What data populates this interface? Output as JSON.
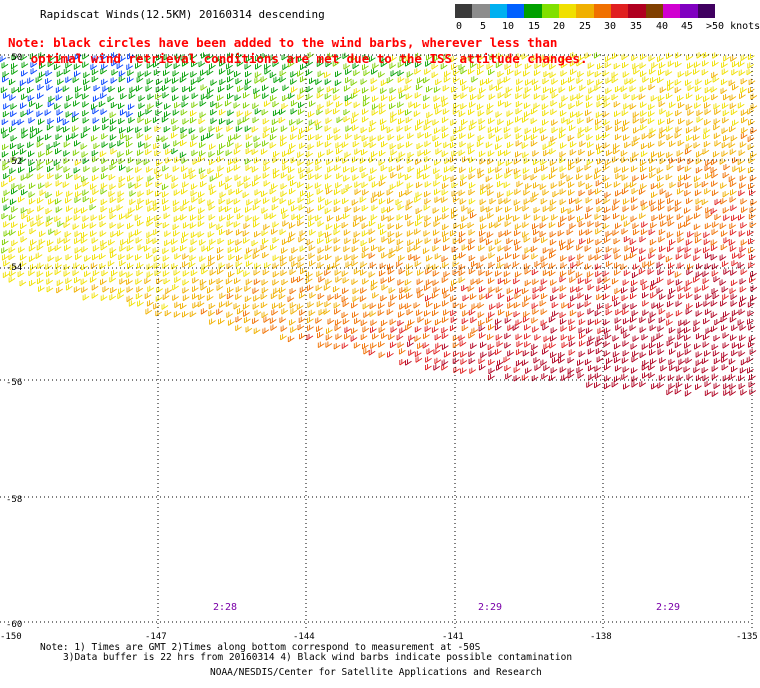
{
  "title": "Rapidscat Winds(12.5KM) 20160314 descending",
  "note_line1": "Note: black circles have been added to the wind barbs, wherever less than",
  "note_line2": "   optimal wind retrieval conditions are met due to the ISS attitude changes.",
  "scale": {
    "unit_label": ">50 knots",
    "ticks": [
      "0",
      "5",
      "10",
      "15",
      "20",
      "25",
      "30",
      "35",
      "40",
      "45"
    ],
    "colors": [
      "#3a3a3a",
      "#8c8c8c",
      "#00b0f0",
      "#0060ff",
      "#00a000",
      "#80e000",
      "#f0e000",
      "#f0b000",
      "#f07000",
      "#e02020",
      "#b00020",
      "#804000",
      "#d000d0",
      "#8000c0",
      "#400060"
    ]
  },
  "lat_labels": [
    "-50",
    "-52",
    "-54",
    "-56",
    "-58",
    "-60"
  ],
  "lon_labels": [
    "-150",
    "-147",
    "-144",
    "-141",
    "-138",
    "-135"
  ],
  "time_labels": [
    "2:28",
    "2:29",
    "2:29"
  ],
  "footer": {
    "line1": "Note: 1) Times are GMT 2)Times along bottom correspond to measurement at -50S",
    "line2": "3)Data buffer is 22 hrs from 20160314 4) Black wind barbs indicate possible contamination",
    "line3": "NOAA/NESDIS/Center for Satellite Applications and Research"
  }
}
